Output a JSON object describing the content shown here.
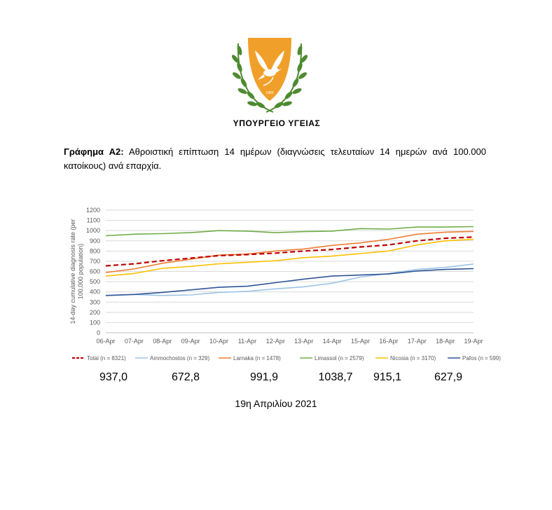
{
  "header": {
    "ministry": "ΥΠΟΥΡΓΕΙΟ ΥΓΕΙΑΣ",
    "emblem_year": "1960"
  },
  "caption": {
    "label": "Γράφημα Α2:",
    "text": "Αθροιστική επίπτωση 14 ημέρων (διαγνώσεις τελευταίων 14 ημερών ανά 100.000 κατοίκους) ανά επαρχία."
  },
  "chart_data": {
    "type": "line",
    "ylabel": "14-day cumulative diagnosis rate (per 100,000 population)",
    "ylim": [
      0,
      1200
    ],
    "yticks": [
      0,
      100,
      200,
      300,
      400,
      500,
      600,
      700,
      800,
      900,
      1000,
      1100,
      1200
    ],
    "categories": [
      "06-Apr",
      "07-Apr",
      "08-Apr",
      "09-Apr",
      "10-Apr",
      "11-Apr",
      "12-Apr",
      "13-Apr",
      "14-Apr",
      "15-Apr",
      "16-Apr",
      "17-Apr",
      "18-Apr",
      "19-Apr"
    ],
    "grid": true,
    "legend": "bottom",
    "series": [
      {
        "name": "Total (n = 8321)",
        "color": "#c00000",
        "dashed": true,
        "values": [
          655,
          675,
          705,
          730,
          755,
          765,
          780,
          800,
          815,
          840,
          860,
          900,
          925,
          937
        ]
      },
      {
        "name": "Ammochostos (n = 329)",
        "color": "#9dc3e6",
        "dashed": false,
        "values": [
          365,
          375,
          365,
          370,
          395,
          405,
          430,
          450,
          485,
          545,
          580,
          620,
          640,
          673
        ]
      },
      {
        "name": "Larnaka (n = 1478)",
        "color": "#ed7d31",
        "dashed": false,
        "values": [
          590,
          625,
          680,
          720,
          760,
          770,
          800,
          820,
          855,
          880,
          915,
          965,
          985,
          992
        ]
      },
      {
        "name": "Limassol (n = 2579)",
        "color": "#70ad47",
        "dashed": false,
        "values": [
          950,
          965,
          970,
          980,
          1000,
          995,
          980,
          990,
          995,
          1020,
          1015,
          1035,
          1035,
          1039
        ]
      },
      {
        "name": "Nicosia (n = 3170)",
        "color": "#ffc000",
        "dashed": false,
        "values": [
          555,
          580,
          630,
          650,
          675,
          690,
          705,
          735,
          750,
          775,
          800,
          860,
          900,
          915
        ]
      },
      {
        "name": "Pafos (n = 599)",
        "color": "#2f5597",
        "dashed": false,
        "values": [
          365,
          375,
          395,
          420,
          445,
          455,
          490,
          525,
          555,
          565,
          575,
          605,
          620,
          628
        ]
      }
    ]
  },
  "totals": [
    "937,0",
    "672,8",
    "991,9",
    "1038,7",
    "915,1",
    "627,9"
  ],
  "date": "19η Απριλίου 2021"
}
